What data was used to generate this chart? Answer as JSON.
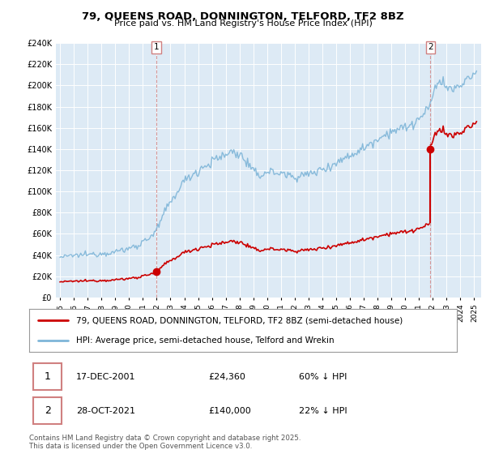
{
  "title": "79, QUEENS ROAD, DONNINGTON, TELFORD, TF2 8BZ",
  "subtitle": "Price paid vs. HM Land Registry's House Price Index (HPI)",
  "legend_line1": "79, QUEENS ROAD, DONNINGTON, TELFORD, TF2 8BZ (semi-detached house)",
  "legend_line2": "HPI: Average price, semi-detached house, Telford and Wrekin",
  "sale1_date": "17-DEC-2001",
  "sale1_price": "£24,360",
  "sale1_note": "60% ↓ HPI",
  "sale2_date": "28-OCT-2021",
  "sale2_price": "£140,000",
  "sale2_note": "22% ↓ HPI",
  "footer": "Contains HM Land Registry data © Crown copyright and database right 2025.\nThis data is licensed under the Open Government Licence v3.0.",
  "ylim": [
    0,
    240000
  ],
  "hpi_color": "#7eb5d8",
  "price_color": "#cc0000",
  "vline_color": "#d08080",
  "plot_bg": "#ddeaf5",
  "grid_color": "#c8d8e8",
  "sale1_year": 2001.96,
  "sale1_value": 24360,
  "sale2_year": 2021.83,
  "sale2_value": 140000
}
